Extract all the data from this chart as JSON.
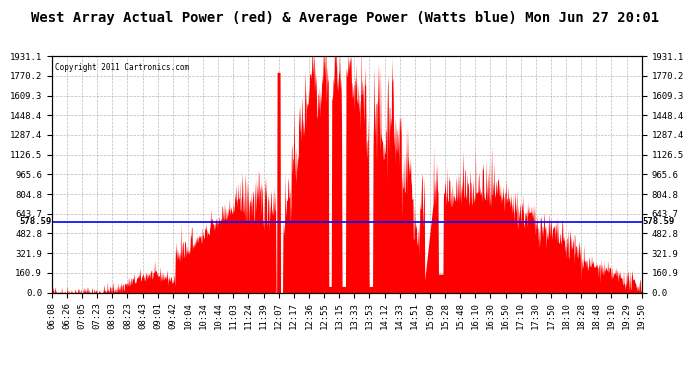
{
  "title": "West Array Actual Power (red) & Average Power (Watts blue) Mon Jun 27 20:01",
  "copyright": "Copyright 2011 Cartronics.com",
  "ymax": 1931.1,
  "ymin": 0.0,
  "avg_power": 578.59,
  "yticks": [
    0.0,
    160.9,
    321.9,
    482.8,
    643.7,
    804.8,
    965.6,
    1126.5,
    1287.4,
    1448.4,
    1609.3,
    1770.2,
    1931.1
  ],
  "xtick_labels": [
    "06:08",
    "06:26",
    "07:05",
    "07:23",
    "08:03",
    "08:23",
    "08:43",
    "09:01",
    "09:42",
    "10:04",
    "10:34",
    "10:44",
    "11:03",
    "11:24",
    "11:39",
    "12:07",
    "12:17",
    "12:36",
    "12:55",
    "13:15",
    "13:33",
    "13:53",
    "14:12",
    "14:33",
    "14:51",
    "15:09",
    "15:28",
    "15:48",
    "16:10",
    "16:30",
    "16:50",
    "17:10",
    "17:30",
    "17:50",
    "18:10",
    "18:28",
    "18:48",
    "19:10",
    "19:29",
    "19:50"
  ],
  "fill_color": "#FF0000",
  "line_color": "#0000FF",
  "bg_color": "#FFFFFF",
  "grid_color": "#AAAAAA",
  "title_fontsize": 10,
  "label_fontsize": 6.5,
  "avg_label": "578.59"
}
